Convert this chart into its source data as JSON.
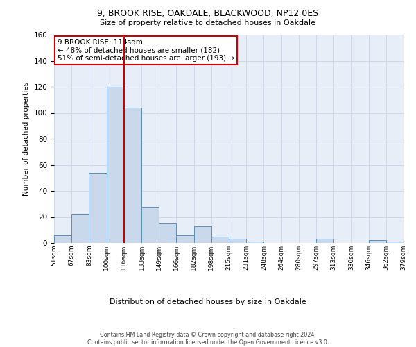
{
  "title1": "9, BROOK RISE, OAKDALE, BLACKWOOD, NP12 0ES",
  "title2": "Size of property relative to detached houses in Oakdale",
  "xlabel": "Distribution of detached houses by size in Oakdale",
  "ylabel": "Number of detached properties",
  "categories": [
    "51sqm",
    "67sqm",
    "83sqm",
    "100sqm",
    "116sqm",
    "133sqm",
    "149sqm",
    "166sqm",
    "182sqm",
    "198sqm",
    "215sqm",
    "231sqm",
    "248sqm",
    "264sqm",
    "280sqm",
    "297sqm",
    "313sqm",
    "330sqm",
    "346sqm",
    "362sqm",
    "379sqm"
  ],
  "values": [
    6,
    22,
    54,
    120,
    104,
    28,
    15,
    6,
    13,
    5,
    3,
    1,
    0,
    0,
    0,
    3,
    0,
    0,
    2,
    1
  ],
  "bar_color": "#c9d9eb",
  "bar_edge_color": "#5b8db8",
  "vline_color": "#cc0000",
  "annotation_text": "9 BROOK RISE: 114sqm\n← 48% of detached houses are smaller (182)\n51% of semi-detached houses are larger (193) →",
  "annotation_box_color": "#ffffff",
  "annotation_box_edge": "#cc0000",
  "grid_color": "#d0d8e8",
  "background_color": "#e8eef7",
  "footer": "Contains HM Land Registry data © Crown copyright and database right 2024.\nContains public sector information licensed under the Open Government Licence v3.0.",
  "ylim": [
    0,
    160
  ],
  "yticks": [
    0,
    20,
    40,
    60,
    80,
    100,
    120,
    140,
    160
  ]
}
